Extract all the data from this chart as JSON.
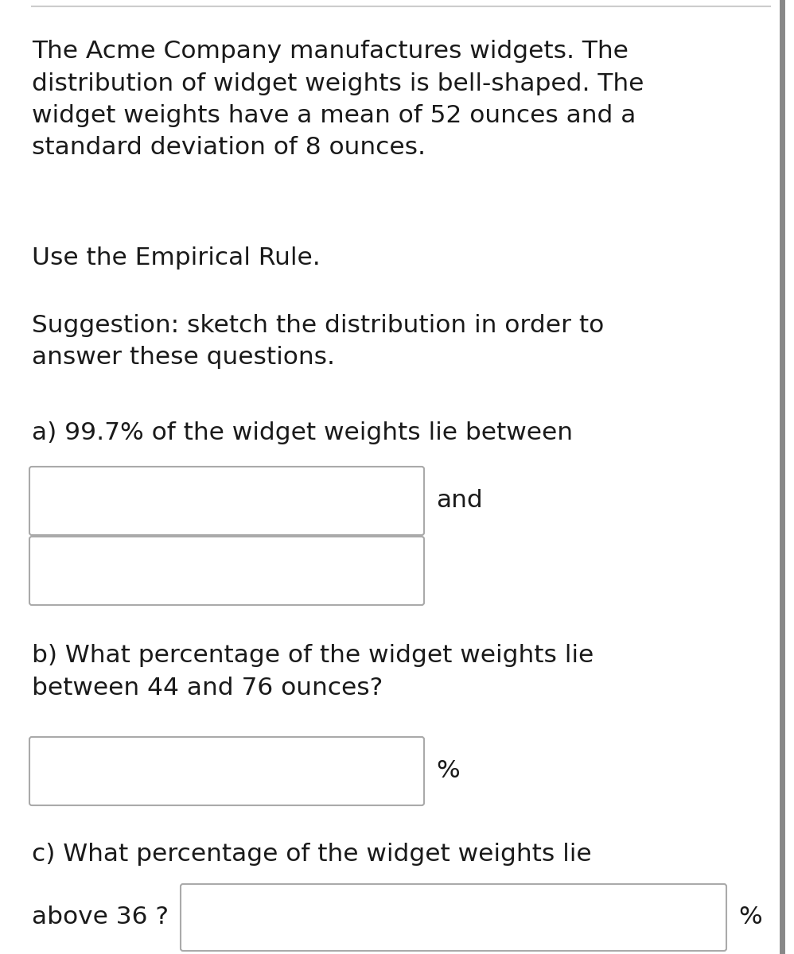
{
  "bg_color": "#ffffff",
  "text_color": "#1a1a1a",
  "border_color": "#aaaaaa",
  "top_line_color": "#cccccc",
  "right_line_color": "#888888",
  "paragraph1": "The Acme Company manufactures widgets. The\ndistribution of widget weights is bell-shaped. The\nwidget weights have a mean of 52 ounces and a\nstandard deviation of 8 ounces.",
  "paragraph2": "Use the Empirical Rule.",
  "paragraph3": "Suggestion: sketch the distribution in order to\nanswer these questions.",
  "part_a_text": "a) 99.7% of the widget weights lie between",
  "part_a_and": "and",
  "part_b_text": "b) What percentage of the widget weights lie\nbetween 44 and 76 ounces?",
  "part_b_suffix": "%",
  "part_c_line1": "c) What percentage of the widget weights lie",
  "part_c_line2": "above 36 ?",
  "part_c_suffix": "%",
  "font_size": 22.5,
  "fig_width": 9.98,
  "fig_height": 12.0,
  "dpi": 100
}
